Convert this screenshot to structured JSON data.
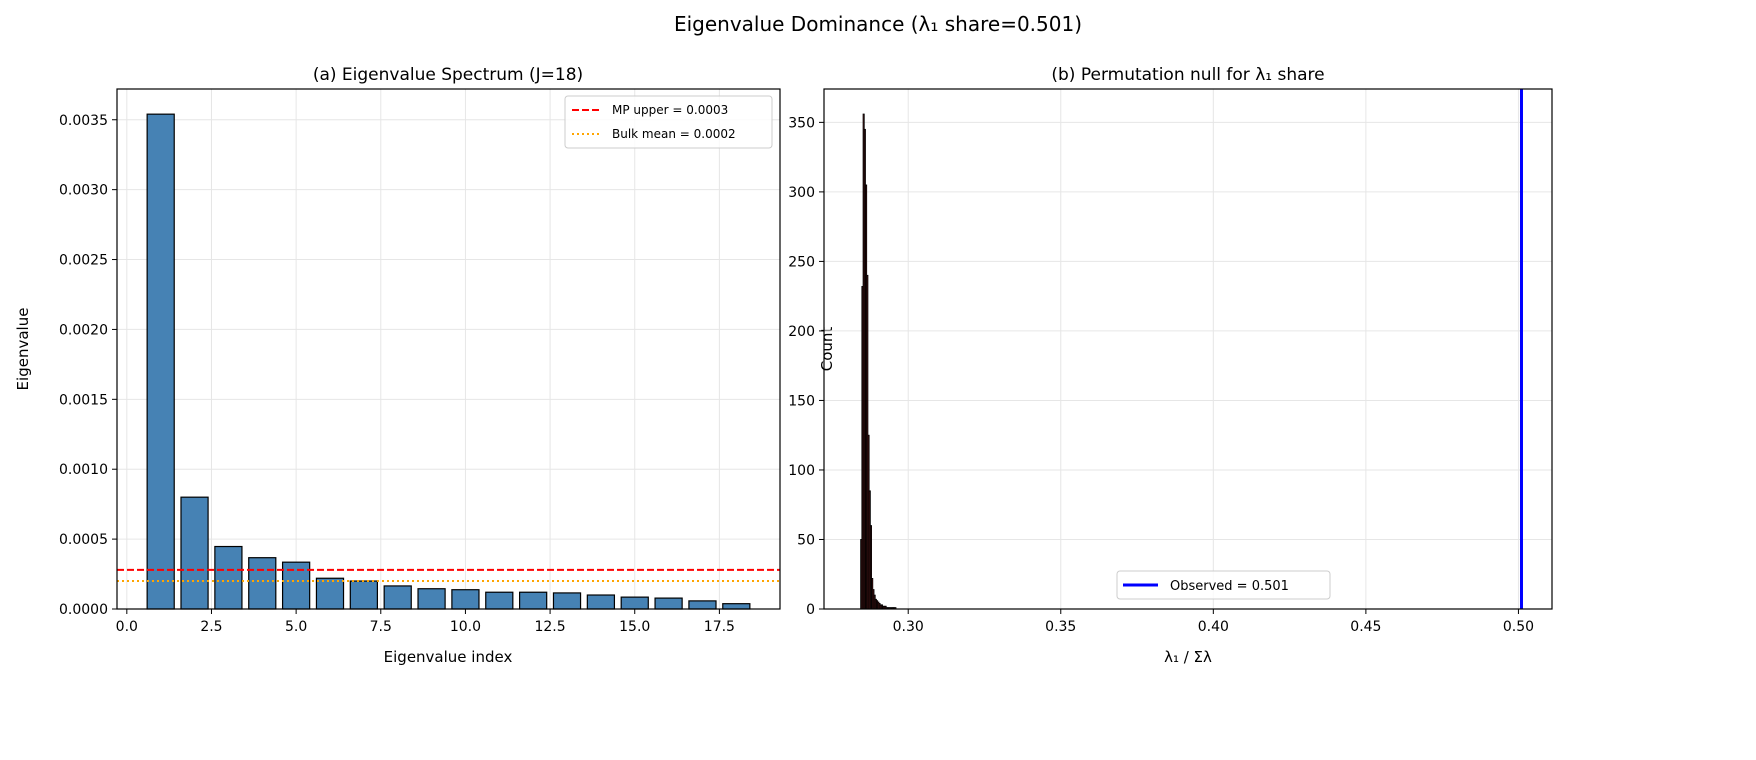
{
  "figure": {
    "suptitle": "Eigenvalue Dominance (λ₁ share=0.501)"
  },
  "chart_data": [
    {
      "type": "bar",
      "title": "(a) Eigenvalue Spectrum (J=18)",
      "xlabel": "Eigenvalue index",
      "ylabel": "Eigenvalue",
      "x": [
        1,
        2,
        3,
        4,
        5,
        6,
        7,
        8,
        9,
        10,
        11,
        12,
        13,
        14,
        15,
        16,
        17,
        18
      ],
      "values": [
        0.00354,
        0.0008,
        0.000447,
        0.000367,
        0.000335,
        0.00022,
        0.0002,
        0.000165,
        0.000145,
        0.000138,
        0.00012,
        0.00012,
        0.000115,
        0.0001,
        8.5e-05,
        7.8e-05,
        5.8e-05,
        3.8e-05
      ],
      "bar_color": "#4682b4",
      "xlim": [
        -0.29,
        19.29
      ],
      "ylim": [
        0,
        0.00372
      ],
      "xticks": [
        "0.0",
        "2.5",
        "5.0",
        "7.5",
        "10.0",
        "12.5",
        "15.0",
        "17.5"
      ],
      "yticks": [
        "0.0000",
        "0.0005",
        "0.0010",
        "0.0015",
        "0.0020",
        "0.0025",
        "0.0030",
        "0.0035"
      ],
      "grid": true,
      "hlines": [
        {
          "name": "MP upper = 0.0003",
          "y": 0.00028,
          "color": "#ff0000",
          "style": "dashed"
        },
        {
          "name": "Bulk mean = 0.0002",
          "y": 0.0002,
          "color": "#ffa500",
          "style": "dotted"
        }
      ],
      "legend": "top-right"
    },
    {
      "type": "histogram",
      "title": "(b) Permutation null for λ₁ share",
      "xlabel": "λ₁ / Σλ",
      "ylabel": "Count",
      "bin_start": 0.2844,
      "bin_width": 0.0004,
      "counts": [
        50,
        232,
        356,
        345,
        305,
        240,
        125,
        85,
        60,
        22,
        14,
        10,
        7,
        6,
        5,
        4,
        3,
        3,
        2,
        2,
        2,
        1,
        1,
        1,
        1,
        1,
        1,
        1,
        1
      ],
      "bar_color": "#5a1a1a",
      "xlim": [
        0.2724,
        0.511
      ],
      "ylim": [
        0,
        374
      ],
      "xticks": [
        "0.30",
        "0.35",
        "0.40",
        "0.45",
        "0.50"
      ],
      "yticks": [
        "0",
        "50",
        "100",
        "150",
        "200",
        "250",
        "300",
        "350"
      ],
      "grid": true,
      "vlines": [
        {
          "name": "Observed = 0.501",
          "x": 0.501,
          "color": "#0000ff",
          "style": "solid"
        }
      ],
      "legend": "lower-center"
    }
  ]
}
